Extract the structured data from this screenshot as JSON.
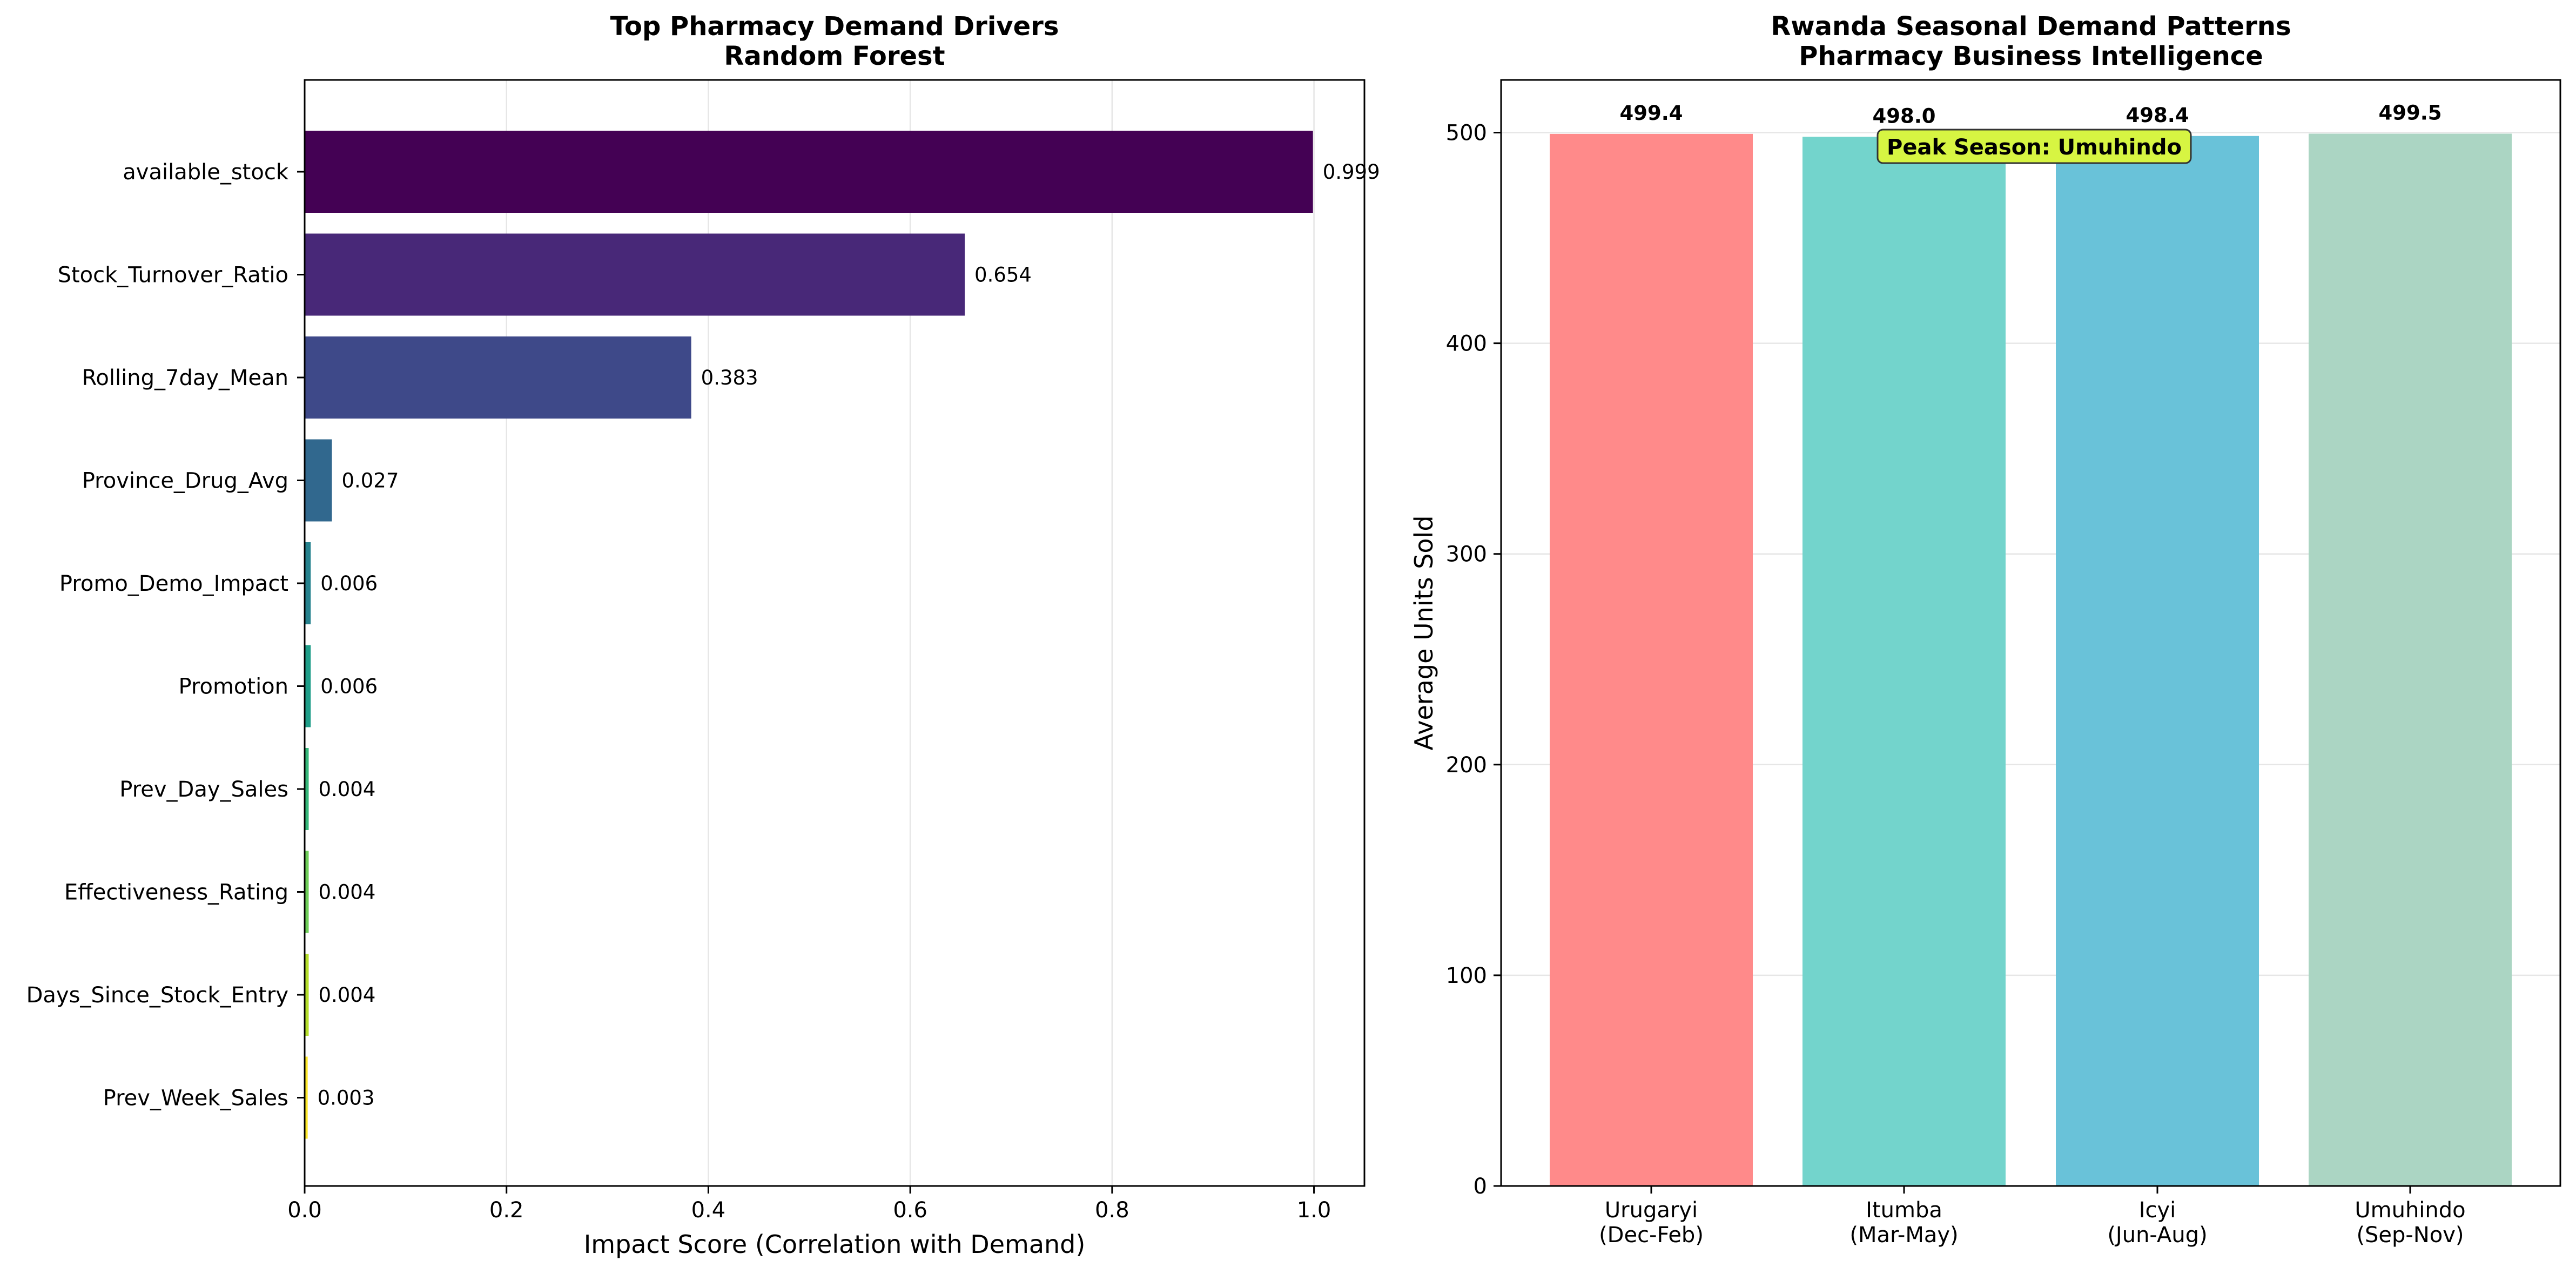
{
  "chart_data": [
    {
      "type": "bar",
      "orientation": "horizontal",
      "title": "Top Pharmacy Demand Drivers",
      "subtitle": "Random Forest",
      "xlabel": "Impact Score (Correlation with Demand)",
      "ylabel": "",
      "xlim": [
        0,
        1.05
      ],
      "xticks": [
        "0.0",
        "0.2",
        "0.4",
        "0.6",
        "0.8",
        "1.0"
      ],
      "grid": true,
      "categories": [
        "available_stock",
        "Stock_Turnover_Ratio",
        "Rolling_7day_Mean",
        "Province_Drug_Avg",
        "Promo_Demo_Impact",
        "Promotion",
        "Prev_Day_Sales",
        "Effectiveness_Rating",
        "Days_Since_Stock_Entry",
        "Prev_Week_Sales"
      ],
      "values": [
        0.999,
        0.654,
        0.383,
        0.027,
        0.006,
        0.006,
        0.004,
        0.004,
        0.004,
        0.003
      ],
      "value_labels": [
        "0.999",
        "0.654",
        "0.383",
        "0.027",
        "0.006",
        "0.006",
        "0.004",
        "0.004",
        "0.004",
        "0.003"
      ],
      "colors": [
        "#440154",
        "#482878",
        "#3e4989",
        "#31688e",
        "#26828e",
        "#1f9e89",
        "#35b779",
        "#6ece58",
        "#b5de2b",
        "#fde725"
      ]
    },
    {
      "type": "bar",
      "title": "Rwanda Seasonal Demand Patterns",
      "subtitle": "Pharmacy Business Intelligence",
      "xlabel": "",
      "ylabel": "Average Units Sold",
      "ylim": [
        0,
        525
      ],
      "yticks": [
        "0",
        "100",
        "200",
        "300",
        "400",
        "500"
      ],
      "grid": true,
      "categories": [
        [
          "Urugaryi",
          "(Dec-Feb)"
        ],
        [
          "Itumba",
          "(Mar-May)"
        ],
        [
          "Icyi",
          "(Jun-Aug)"
        ],
        [
          "Umuhindo",
          "(Sep-Nov)"
        ]
      ],
      "values": [
        499.4,
        498.0,
        498.4,
        499.5
      ],
      "value_labels": [
        "499.4",
        "498.0",
        "498.4",
        "499.5"
      ],
      "colors": [
        "#ff8a8a",
        "#73d4cc",
        "#69c2d9",
        "#abd5c3"
      ],
      "annotation": {
        "text": "Peak Season: Umuhindo",
        "box_color": "#d7f542"
      }
    }
  ]
}
